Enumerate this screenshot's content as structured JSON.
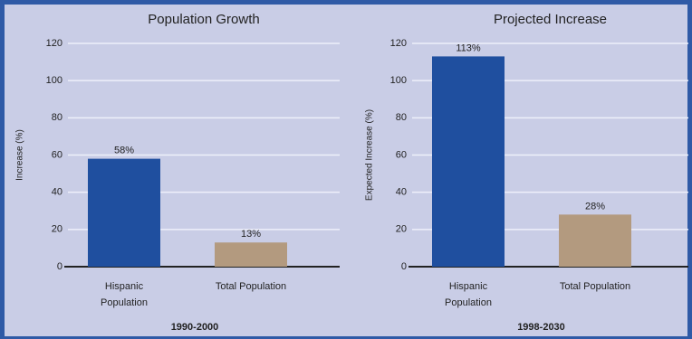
{
  "chart_data": [
    {
      "type": "bar",
      "title": "Population Growth",
      "ylabel": "Increase (%)",
      "xlabel": "1990-2000",
      "categories": [
        "Hispanic Population",
        "Total Population"
      ],
      "values": [
        58,
        13
      ],
      "value_labels": [
        "58%",
        "13%"
      ],
      "colors": [
        "#1f4f9f",
        "#b39a7f"
      ],
      "ylim": [
        0,
        120
      ],
      "yticks": [
        0,
        20,
        40,
        60,
        80,
        100,
        120
      ],
      "grid": true
    },
    {
      "type": "bar",
      "title": "Projected Increase",
      "ylabel": "Expected Increase (%)",
      "xlabel": "1998-2030",
      "categories": [
        "Hispanic Population",
        "Total Population"
      ],
      "values": [
        113,
        28
      ],
      "value_labels": [
        "113%",
        "28%"
      ],
      "colors": [
        "#1f4f9f",
        "#b39a7f"
      ],
      "ylim": [
        0,
        120
      ],
      "yticks": [
        0,
        20,
        40,
        60,
        80,
        100,
        120
      ],
      "grid": true
    }
  ]
}
